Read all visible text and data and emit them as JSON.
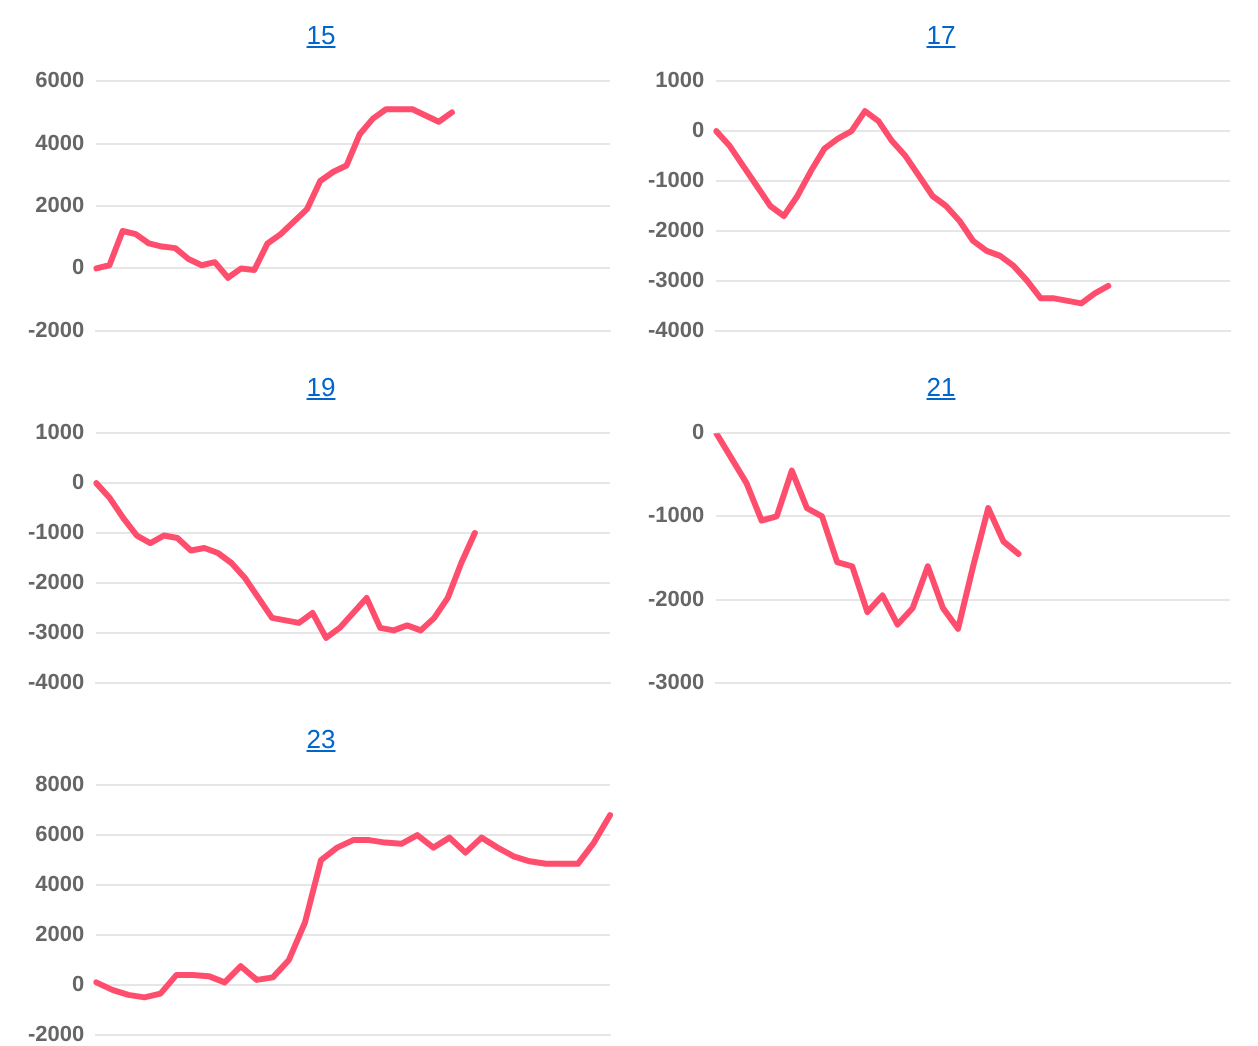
{
  "chart_data": [
    {
      "type": "line",
      "title": "15",
      "categories": [
        null,
        null,
        null,
        null,
        null,
        null,
        null,
        null,
        null,
        null,
        null,
        null,
        null,
        null,
        null,
        null,
        null,
        null,
        null,
        null,
        null,
        null,
        null,
        null,
        null,
        null,
        null,
        null,
        null,
        null,
        null,
        null,
        null,
        null,
        null,
        null,
        null,
        null,
        null,
        null
      ],
      "series": [
        {
          "color": "#ff4d6d",
          "values": [
            0,
            100,
            1200,
            1100,
            800,
            700,
            650,
            300,
            100,
            200,
            -300,
            0,
            -50,
            800,
            1100,
            1500,
            1900,
            2800,
            3100,
            3300,
            4300,
            4800,
            5100,
            5100,
            5100,
            4900,
            4700,
            5000,
            null,
            null,
            null,
            null,
            null,
            null,
            null,
            null,
            null,
            null,
            null,
            null
          ]
        }
      ],
      "ylim": [
        -2000,
        6000
      ],
      "yticks": [
        -2000,
        0,
        2000,
        4000,
        6000
      ],
      "grid": "y",
      "tick_labels": "y",
      "legend": false,
      "marker": "none",
      "line_style": "solid"
    },
    {
      "type": "line",
      "title": "17",
      "categories": [
        null,
        null,
        null,
        null,
        null,
        null,
        null,
        null,
        null,
        null,
        null,
        null,
        null,
        null,
        null,
        null,
        null,
        null,
        null,
        null,
        null,
        null,
        null,
        null,
        null,
        null,
        null,
        null,
        null,
        null,
        null,
        null,
        null,
        null,
        null,
        null,
        null,
        null,
        null
      ],
      "series": [
        {
          "color": "#ff4d6d",
          "values": [
            0,
            -300,
            -700,
            -1100,
            -1500,
            -1700,
            -1300,
            -800,
            -350,
            -150,
            0,
            400,
            200,
            -200,
            -500,
            -900,
            -1300,
            -1500,
            -1800,
            -2200,
            -2400,
            -2500,
            -2700,
            -3000,
            -3350,
            -3350,
            -3400,
            -3450,
            -3250,
            -3100,
            null,
            null,
            null,
            null,
            null,
            null,
            null,
            null,
            null
          ]
        }
      ],
      "ylim": [
        -4000,
        1000
      ],
      "yticks": [
        -4000,
        -3000,
        -2000,
        -1000,
        0,
        1000
      ],
      "grid": "y",
      "tick_labels": "y",
      "legend": false,
      "marker": "none",
      "line_style": "solid"
    },
    {
      "type": "line",
      "title": "19",
      "categories": [
        null,
        null,
        null,
        null,
        null,
        null,
        null,
        null,
        null,
        null,
        null,
        null,
        null,
        null,
        null,
        null,
        null,
        null,
        null,
        null,
        null,
        null,
        null,
        null,
        null,
        null,
        null,
        null,
        null,
        null,
        null,
        null,
        null,
        null,
        null,
        null,
        null,
        null,
        null
      ],
      "series": [
        {
          "color": "#ff4d6d",
          "values": [
            0,
            -300,
            -700,
            -1050,
            -1200,
            -1050,
            -1100,
            -1350,
            -1300,
            -1400,
            -1600,
            -1900,
            -2300,
            -2700,
            -2750,
            -2800,
            -2600,
            -3100,
            -2900,
            -2600,
            -2300,
            -2900,
            -2950,
            -2850,
            -2950,
            -2700,
            -2300,
            -1600,
            -1000,
            null,
            null,
            null,
            null,
            null,
            null,
            null,
            null,
            null,
            null
          ]
        }
      ],
      "ylim": [
        -4000,
        1000
      ],
      "yticks": [
        -4000,
        -3000,
        -2000,
        -1000,
        0,
        1000
      ],
      "grid": "y",
      "tick_labels": "y",
      "legend": false,
      "marker": "none",
      "line_style": "solid"
    },
    {
      "type": "line",
      "title": "21",
      "categories": [
        null,
        null,
        null,
        null,
        null,
        null,
        null,
        null,
        null,
        null,
        null,
        null,
        null,
        null,
        null,
        null,
        null,
        null,
        null,
        null,
        null,
        null,
        null,
        null,
        null,
        null,
        null,
        null,
        null,
        null,
        null,
        null,
        null,
        null,
        null
      ],
      "series": [
        {
          "color": "#ff4d6d",
          "values": [
            0,
            -300,
            -600,
            -1050,
            -1000,
            -450,
            -900,
            -1000,
            -1550,
            -1600,
            -2150,
            -1950,
            -2300,
            -2100,
            -1600,
            -2100,
            -2350,
            -1600,
            -900,
            -1300,
            -1450,
            null,
            null,
            null,
            null,
            null,
            null,
            null,
            null,
            null,
            null,
            null,
            null,
            null,
            null
          ]
        }
      ],
      "ylim": [
        -3000,
        0
      ],
      "yticks": [
        -3000,
        -2000,
        -1000,
        0
      ],
      "grid": "y",
      "tick_labels": "y",
      "legend": false,
      "marker": "none",
      "line_style": "solid"
    },
    {
      "type": "line",
      "title": "23",
      "categories": [
        null,
        null,
        null,
        null,
        null,
        null,
        null,
        null,
        null,
        null,
        null,
        null,
        null,
        null,
        null,
        null,
        null,
        null,
        null,
        null,
        null,
        null,
        null,
        null,
        null,
        null,
        null,
        null,
        null,
        null,
        null,
        null,
        null
      ],
      "series": [
        {
          "color": "#ff4d6d",
          "values": [
            100,
            -200,
            -400,
            -500,
            -350,
            400,
            400,
            350,
            100,
            750,
            200,
            300,
            1000,
            2500,
            5000,
            5500,
            5800,
            5800,
            5700,
            5650,
            6000,
            5500,
            5900,
            5300,
            5900,
            5500,
            5150,
            4950,
            4850,
            4850,
            4850,
            5700,
            6800
          ]
        }
      ],
      "ylim": [
        -2000,
        8000
      ],
      "yticks": [
        -2000,
        0,
        2000,
        4000,
        6000,
        8000
      ],
      "grid": "y",
      "tick_labels": "y",
      "legend": false,
      "marker": "none",
      "line_style": "solid"
    }
  ]
}
